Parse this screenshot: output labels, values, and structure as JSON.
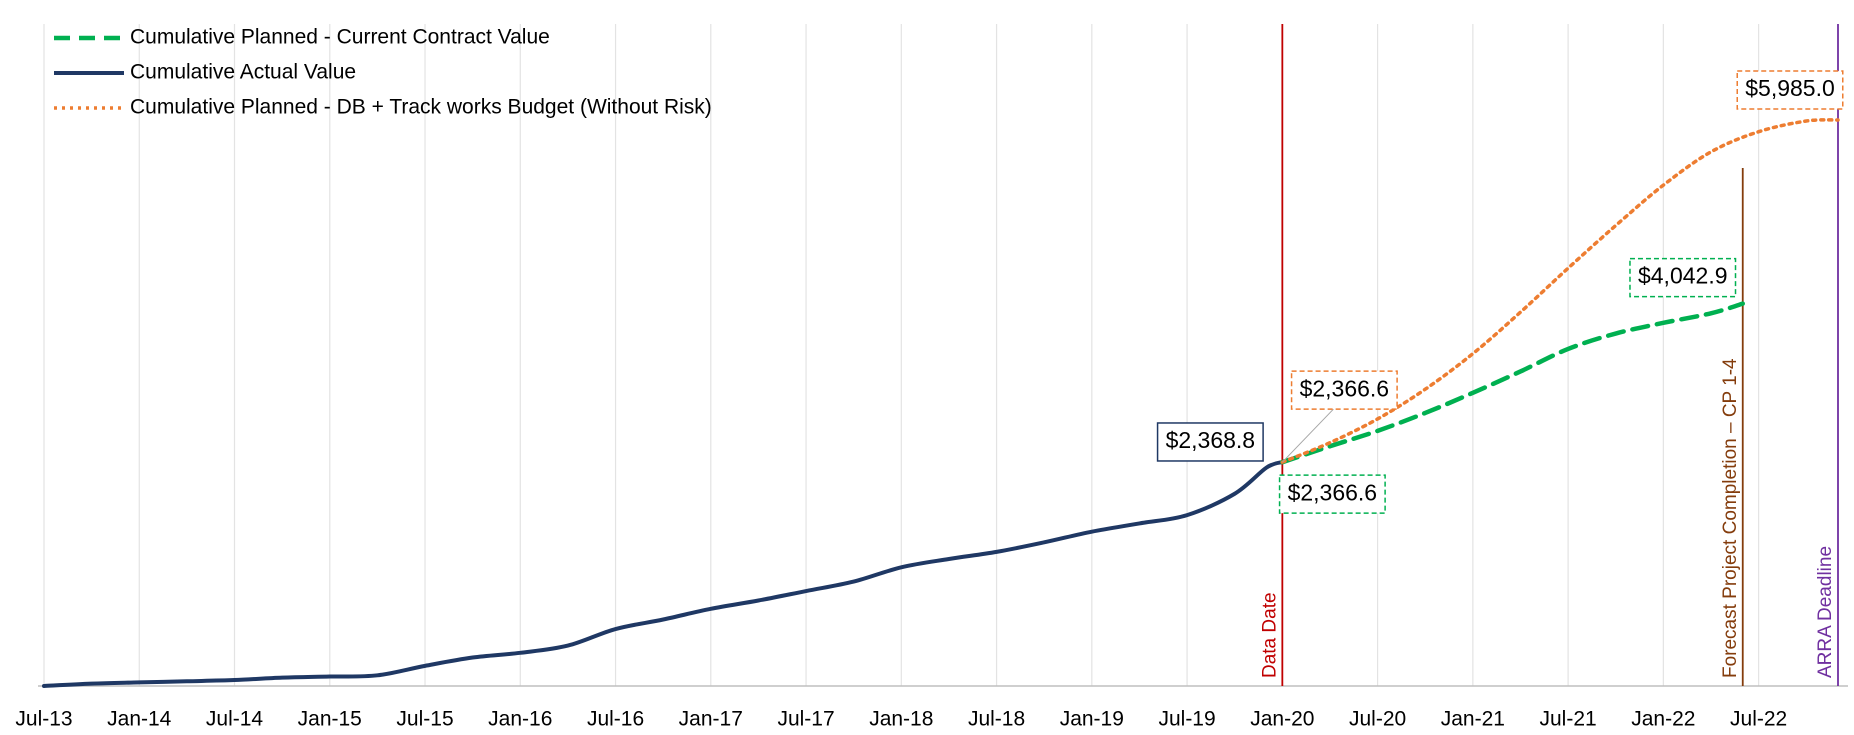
{
  "chart_data": {
    "type": "line",
    "xlim": [
      "2013-07",
      "2022-12"
    ],
    "ylim": [
      0,
      7000
    ],
    "grid": true,
    "legend": "top-left",
    "xticks": [
      {
        "value": "2013-07",
        "label": "Jul-13"
      },
      {
        "value": "2014-01",
        "label": "Jan-14"
      },
      {
        "value": "2014-07",
        "label": "Jul-14"
      },
      {
        "value": "2015-01",
        "label": "Jan-15"
      },
      {
        "value": "2015-07",
        "label": "Jul-15"
      },
      {
        "value": "2016-01",
        "label": "Jan-16"
      },
      {
        "value": "2016-07",
        "label": "Jul-16"
      },
      {
        "value": "2017-01",
        "label": "Jan-17"
      },
      {
        "value": "2017-07",
        "label": "Jul-17"
      },
      {
        "value": "2018-01",
        "label": "Jan-18"
      },
      {
        "value": "2018-07",
        "label": "Jul-18"
      },
      {
        "value": "2019-01",
        "label": "Jan-19"
      },
      {
        "value": "2019-07",
        "label": "Jul-19"
      },
      {
        "value": "2020-01",
        "label": "Jan-20"
      },
      {
        "value": "2020-07",
        "label": "Jul-20"
      },
      {
        "value": "2021-01",
        "label": "Jan-21"
      },
      {
        "value": "2021-07",
        "label": "Jul-21"
      },
      {
        "value": "2022-01",
        "label": "Jan-22"
      },
      {
        "value": "2022-07",
        "label": "Jul-22"
      }
    ],
    "series": [
      {
        "name": "Cumulative Planned - Current Contract Value",
        "color": "#00b050",
        "dash": "dashed",
        "x": [
          "2020-01",
          "2020-04",
          "2020-07",
          "2020-10",
          "2021-01",
          "2021-04",
          "2021-07",
          "2021-10",
          "2022-01",
          "2022-04",
          "2022-06"
        ],
        "values": [
          2366.6,
          2535,
          2698,
          2887,
          3100,
          3326,
          3564,
          3727,
          3840,
          3941,
          4042.9
        ],
        "value_labels": [
          "$2,366.6",
          null,
          null,
          null,
          null,
          null,
          null,
          null,
          null,
          null,
          "$4,042.9"
        ]
      },
      {
        "name": "Cumulative Actual Value",
        "color": "#1f3864",
        "dash": "solid",
        "x": [
          "2013-07",
          "2013-10",
          "2014-01",
          "2014-04",
          "2014-07",
          "2014-10",
          "2015-01",
          "2015-04",
          "2015-07",
          "2015-10",
          "2016-01",
          "2016-04",
          "2016-07",
          "2016-10",
          "2017-01",
          "2017-04",
          "2017-07",
          "2017-10",
          "2018-01",
          "2018-04",
          "2018-07",
          "2018-10",
          "2019-01",
          "2019-04",
          "2019-07",
          "2019-10",
          "2019-12",
          "2020-01"
        ],
        "values": [
          0,
          25,
          38,
          50,
          63,
          88,
          100,
          113,
          213,
          301,
          351,
          427,
          602,
          703,
          816,
          904,
          1004,
          1104,
          1255,
          1343,
          1418,
          1519,
          1632,
          1719,
          1807,
          2033,
          2309,
          2368.8
        ],
        "value_labels": [
          null,
          null,
          null,
          null,
          null,
          null,
          null,
          null,
          null,
          null,
          null,
          null,
          null,
          null,
          null,
          null,
          null,
          null,
          null,
          null,
          null,
          null,
          null,
          null,
          null,
          null,
          null,
          "$2,368.8"
        ]
      },
      {
        "name": "Cumulative Planned - DB + Track works Budget (Without Risk)",
        "color": "#ed7d31",
        "dash": "dotted",
        "x": [
          "2020-01",
          "2020-04",
          "2020-07",
          "2020-10",
          "2021-01",
          "2021-04",
          "2021-07",
          "2021-10",
          "2022-01",
          "2022-04",
          "2022-07",
          "2022-10",
          "2022-12"
        ],
        "values": [
          2366.6,
          2573,
          2824,
          3138,
          3514,
          3953,
          4418,
          4869,
          5296,
          5648,
          5861,
          5974,
          5985.0
        ],
        "value_labels": [
          "$2,366.6",
          null,
          null,
          null,
          null,
          null,
          null,
          null,
          null,
          null,
          null,
          null,
          "$5,985.0"
        ]
      }
    ],
    "reference_lines": [
      {
        "x": "2020-01",
        "label": "Data Date",
        "color": "#c00000"
      },
      {
        "x": "2022-06",
        "label": "Forecast Project Completion – CP 1-4",
        "color": "#843c0c"
      },
      {
        "x": "2022-12",
        "label": "ARRA Deadline",
        "color": "#7030a0"
      }
    ]
  }
}
